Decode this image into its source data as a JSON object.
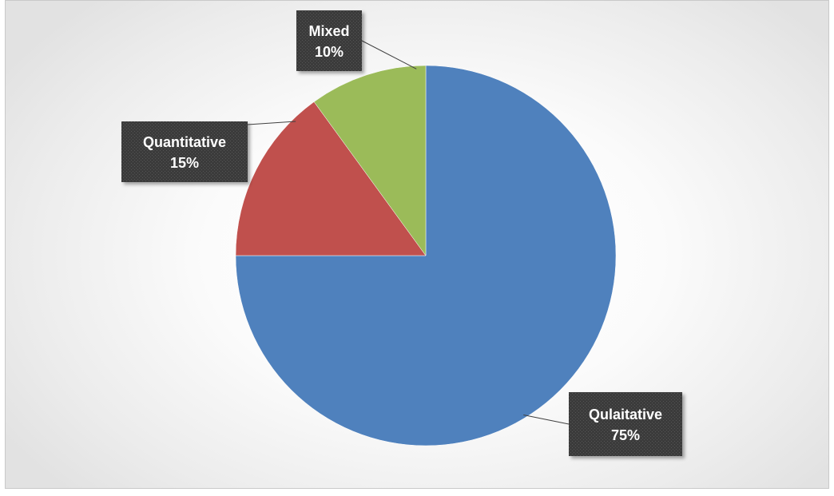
{
  "chart_data": {
    "type": "pie",
    "title": "",
    "slices": [
      {
        "name": "Qulaitative",
        "value": 75,
        "label": "75%",
        "color": "#4f81bd"
      },
      {
        "name": "Quantitative",
        "value": 15,
        "label": "15%",
        "color": "#c0504d"
      },
      {
        "name": "Mixed",
        "value": 10,
        "label": "10%",
        "color": "#9bbb59"
      }
    ],
    "start_angle": "12 o'clock",
    "direction": "clockwise",
    "data_label_style": "dark callout boxes with leader lines",
    "legend": "none"
  }
}
